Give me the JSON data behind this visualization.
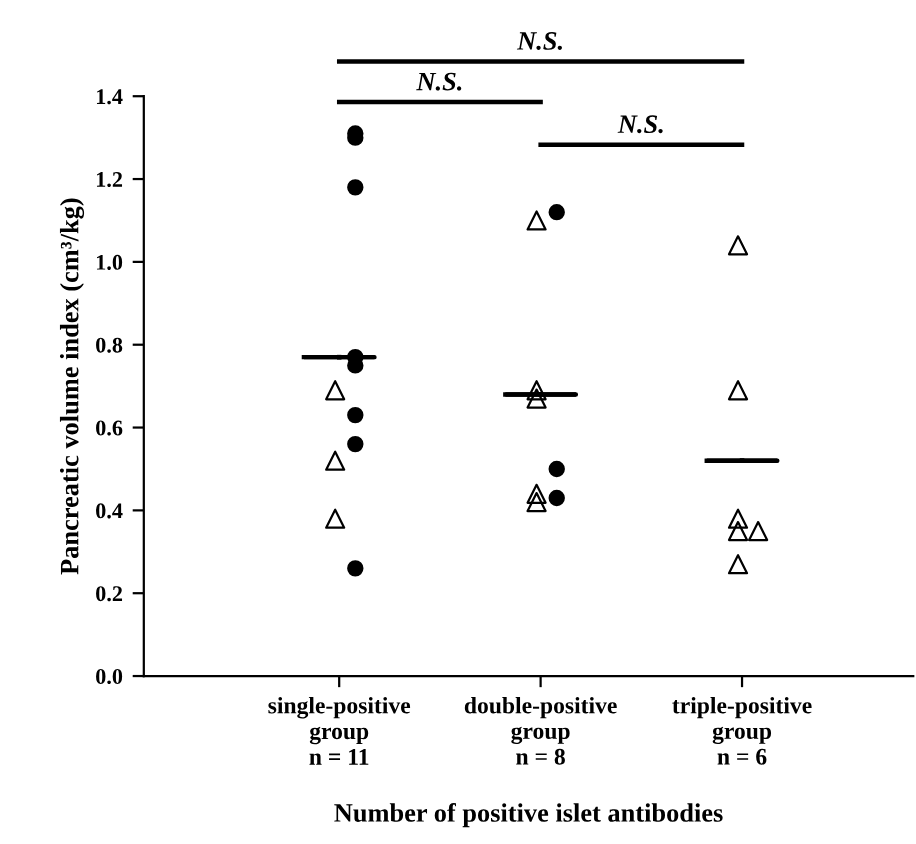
{
  "chart_data": {
    "type": "scatter",
    "xlabel": "Number of positive islet antibodies",
    "ylabel": "Pancreatic volume index (cm³/kg)",
    "categories": [
      "single-positive\ngroup\nn = 11",
      "double-positive\ngroup\nn = 8",
      "triple-positive\ngroup\nn = 6"
    ],
    "ylim": [
      0,
      1.4
    ],
    "yticks": [
      {
        "value": 0,
        "label": "0.0"
      },
      {
        "value": 0.2,
        "label": "0.2"
      },
      {
        "value": 0.4,
        "label": "0.4"
      },
      {
        "value": 0.6,
        "label": "0.6"
      },
      {
        "value": 0.8,
        "label": "0.8"
      },
      {
        "value": 1.0,
        "label": "1.0"
      },
      {
        "value": 1.2,
        "label": "1.2"
      },
      {
        "value": 1.4,
        "label": "1.4"
      }
    ],
    "grid": false,
    "legend": false,
    "series": [
      {
        "marker": "circle",
        "color": "#000000",
        "x": [
          "single-positive\ngroup\nn = 11",
          "single-positive\ngroup\nn = 11",
          "single-positive\ngroup\nn = 11",
          "single-positive\ngroup\nn = 11",
          "single-positive\ngroup\nn = 11",
          "single-positive\ngroup\nn = 11",
          "single-positive\ngroup\nn = 11",
          "single-positive\ngroup\nn = 11",
          "double-positive\ngroup\nn = 8",
          "double-positive\ngroup\nn = 8",
          "double-positive\ngroup\nn = 8"
        ],
        "values": [
          1.31,
          1.3,
          1.18,
          0.77,
          0.75,
          0.63,
          0.56,
          0.26,
          1.12,
          0.5,
          0.43
        ]
      },
      {
        "marker": "triangle",
        "color": "#000000",
        "x": [
          "single-positive\ngroup\nn = 11",
          "single-positive\ngroup\nn = 11",
          "single-positive\ngroup\nn = 11",
          "double-positive\ngroup\nn = 8",
          "double-positive\ngroup\nn = 8",
          "double-positive\ngroup\nn = 8",
          "double-positive\ngroup\nn = 8",
          "double-positive\ngroup\nn = 8",
          "triple-positive\ngroup\nn = 6",
          "triple-positive\ngroup\nn = 6",
          "triple-positive\ngroup\nn = 6",
          "triple-positive\ngroup\nn = 6",
          "triple-positive\ngroup\nn = 6",
          "triple-positive\ngroup\nn = 6"
        ],
        "values": [
          0.69,
          0.52,
          0.38,
          1.1,
          0.69,
          0.67,
          0.44,
          0.42,
          1.04,
          0.69,
          0.38,
          0.35,
          0.35,
          0.27
        ]
      },
      {
        "type": "box",
        "color": "#000000",
        "boxes": [
          {
            "low": 0.77,
            "q1": 0.77,
            "median": 0.77,
            "q3": 0.77,
            "high": 0.77
          },
          {
            "low": 0.68,
            "q1": 0.68,
            "median": 0.68,
            "q3": 0.68,
            "high": 0.68
          },
          {
            "low": 0.52,
            "q1": 0.52,
            "median": 0.52,
            "q3": 0.52,
            "high": 0.52
          }
        ]
      }
    ],
    "annotations": [
      "N.S.",
      "N.S.",
      "N.S."
    ]
  }
}
